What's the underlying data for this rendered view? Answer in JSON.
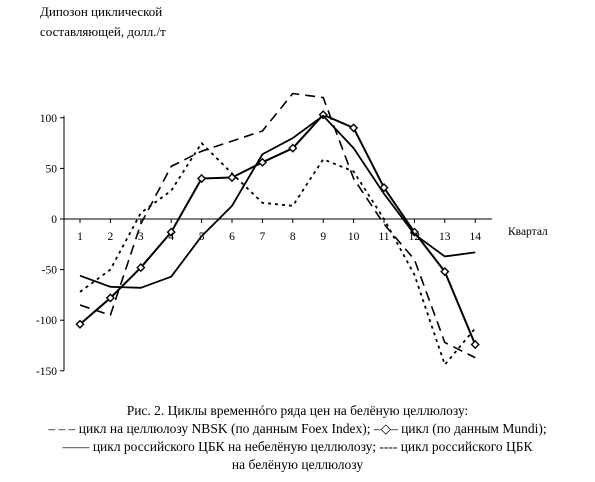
{
  "chart_data": {
    "type": "line",
    "title": "",
    "ylabel": "Дипозон циклической составляющей, долл./т",
    "ylabel_lines": [
      "Дипозон циклической",
      "составляющей, долл./т"
    ],
    "xlabel": "Квартал",
    "x": [
      1,
      2,
      3,
      4,
      5,
      6,
      7,
      8,
      9,
      10,
      11,
      12,
      13,
      14
    ],
    "xlim": [
      1,
      14
    ],
    "ylim": [
      -150,
      100
    ],
    "yticks": [
      100,
      50,
      0,
      -50,
      -100,
      -150
    ],
    "grid": false,
    "legend": "caption-bottom",
    "series": [
      {
        "style": "long-dash",
        "values": [
          -85,
          -95,
          -5,
          52,
          67,
          77,
          87,
          124,
          120,
          40,
          -5,
          -40,
          -122,
          -137
        ]
      },
      {
        "style": "solid-diamond",
        "values": [
          -104,
          -78,
          -48,
          -13,
          40,
          41,
          56,
          70,
          103,
          90,
          31,
          -13,
          -52,
          -124
        ]
      },
      {
        "style": "solid",
        "values": [
          -56,
          -67,
          -68,
          -57,
          -17,
          13,
          64,
          80,
          102,
          70,
          25,
          -15,
          -37,
          -33
        ]
      },
      {
        "style": "short-dash",
        "values": [
          -72,
          -50,
          6,
          28,
          75,
          45,
          16,
          13,
          59,
          47,
          0,
          -55,
          -144,
          -108
        ]
      }
    ]
  },
  "caption": {
    "line1": "Рис. 2. Циклы временнóго ряда цен на белёную целлюлозу:",
    "line2": "– – – цикл на целлюлозу NBSK (по данным Foex Index); –◇– цикл (по данным Mundi);",
    "line3": "—— цикл российского ЦБК на небелёную целлюлозу; ---- цикл российского ЦБК",
    "line4": "на белёную целлюлозу"
  }
}
